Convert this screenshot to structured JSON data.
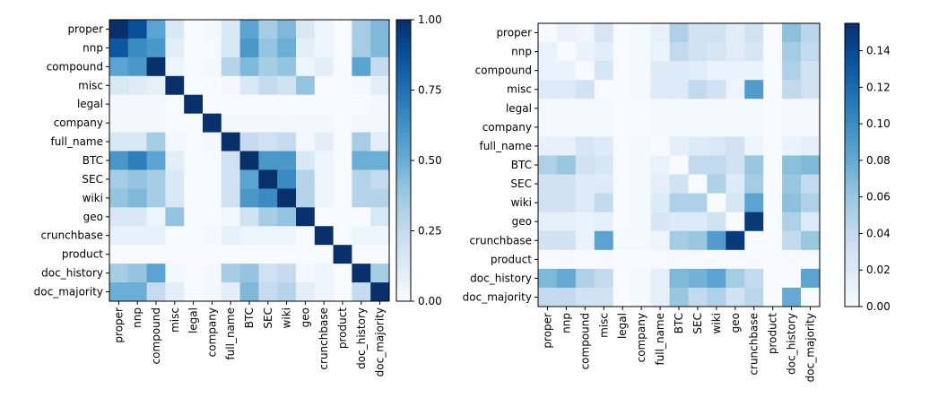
{
  "chart_data": [
    {
      "type": "heatmap",
      "title": "",
      "colormap": "Blues",
      "labels": [
        "proper",
        "nnp",
        "compound",
        "misc",
        "legal",
        "company",
        "full_name",
        "BTC",
        "SEC",
        "wiki",
        "geo",
        "crunchbase",
        "product",
        "doc_history",
        "doc_majority"
      ],
      "vmin": 0,
      "vmax": 1.0,
      "colorbar_ticks": [
        0,
        0.25,
        0.5,
        0.75,
        1.0
      ],
      "colorbar_tick_labels": [
        "0.00",
        "0.25",
        "0.50",
        "0.75",
        "1.00"
      ],
      "matrix": [
        [
          1.0,
          0.88,
          0.55,
          0.15,
          0.0,
          0.02,
          0.15,
          0.55,
          0.35,
          0.45,
          0.15,
          0.05,
          0.0,
          0.35,
          0.45
        ],
        [
          0.85,
          0.65,
          0.6,
          0.1,
          0.0,
          0.01,
          0.15,
          0.6,
          0.4,
          0.5,
          0.1,
          0.05,
          0.0,
          0.35,
          0.45
        ],
        [
          0.55,
          0.6,
          1.0,
          0.05,
          0.0,
          0.02,
          0.3,
          0.45,
          0.35,
          0.4,
          0.05,
          0.1,
          0.0,
          0.55,
          0.25
        ],
        [
          0.15,
          0.12,
          0.08,
          1.0,
          0.0,
          0.0,
          0.02,
          0.15,
          0.25,
          0.2,
          0.4,
          0.0,
          0.0,
          0.02,
          0.1
        ],
        [
          0.02,
          0.02,
          0.02,
          0.0,
          1.0,
          0.0,
          0.0,
          0.0,
          0.0,
          0.0,
          0.0,
          0.0,
          0.0,
          0.0,
          0.02
        ],
        [
          0.03,
          0.03,
          0.03,
          0.0,
          0.0,
          1.0,
          0.02,
          0.02,
          0.02,
          0.03,
          0.02,
          0.02,
          0.0,
          0.02,
          0.03
        ],
        [
          0.15,
          0.15,
          0.35,
          0.02,
          0.0,
          0.02,
          1.0,
          0.25,
          0.2,
          0.25,
          0.02,
          0.1,
          0.0,
          0.35,
          0.1
        ],
        [
          0.6,
          0.7,
          0.55,
          0.1,
          0.0,
          0.01,
          0.2,
          1.0,
          0.6,
          0.6,
          0.15,
          0.05,
          0.0,
          0.5,
          0.5
        ],
        [
          0.35,
          0.4,
          0.35,
          0.15,
          0.0,
          0.01,
          0.2,
          0.55,
          1.0,
          0.65,
          0.3,
          0.05,
          0.0,
          0.3,
          0.25
        ],
        [
          0.4,
          0.45,
          0.35,
          0.15,
          0.0,
          0.01,
          0.2,
          0.6,
          0.65,
          1.0,
          0.3,
          0.05,
          0.0,
          0.3,
          0.3
        ],
        [
          0.15,
          0.15,
          0.05,
          0.4,
          0.0,
          0.0,
          0.02,
          0.2,
          0.35,
          0.4,
          1.0,
          0.0,
          0.0,
          0.0,
          0.15
        ],
        [
          0.08,
          0.08,
          0.08,
          0.0,
          0.0,
          0.02,
          0.08,
          0.05,
          0.05,
          0.05,
          0.0,
          1.0,
          0.0,
          0.05,
          0.05
        ],
        [
          0.0,
          0.0,
          0.0,
          0.0,
          0.0,
          0.0,
          0.0,
          0.0,
          0.0,
          0.0,
          0.0,
          0.0,
          1.0,
          0.0,
          0.0
        ],
        [
          0.35,
          0.4,
          0.55,
          0.02,
          0.0,
          0.02,
          0.35,
          0.4,
          0.2,
          0.25,
          0.02,
          0.05,
          0.0,
          1.0,
          0.35
        ],
        [
          0.5,
          0.5,
          0.25,
          0.1,
          0.0,
          0.02,
          0.1,
          0.45,
          0.25,
          0.3,
          0.1,
          0.05,
          0.0,
          0.25,
          1.0
        ]
      ]
    },
    {
      "type": "heatmap",
      "title": "",
      "colormap": "Blues",
      "labels": [
        "proper",
        "nnp",
        "compound",
        "misc",
        "legal",
        "company",
        "full_name",
        "BTC",
        "SEC",
        "wiki",
        "geo",
        "crunchbase",
        "product",
        "doc_history",
        "doc_majority"
      ],
      "vmin": 0,
      "vmax": 0.155,
      "colorbar_ticks": [
        0,
        0.02,
        0.04,
        0.06,
        0.08,
        0.1,
        0.12,
        0.14
      ],
      "colorbar_tick_labels": [
        "0.00",
        "0.02",
        "0.04",
        "0.06",
        "0.08",
        "0.10",
        "0.12",
        "0.14"
      ],
      "matrix": [
        [
          0.0,
          0.01,
          0.006,
          0.025,
          0.0,
          0.002,
          0.012,
          0.05,
          0.03,
          0.03,
          0.018,
          0.03,
          0.0,
          0.065,
          0.045
        ],
        [
          0.01,
          0.0,
          0.01,
          0.018,
          0.0,
          0.002,
          0.01,
          0.04,
          0.03,
          0.025,
          0.018,
          0.025,
          0.0,
          0.055,
          0.04
        ],
        [
          0.01,
          0.01,
          0.0,
          0.025,
          0.0,
          0.002,
          0.02,
          0.02,
          0.018,
          0.01,
          0.01,
          0.01,
          0.0,
          0.05,
          0.03
        ],
        [
          0.02,
          0.02,
          0.03,
          0.0,
          0.0,
          0.002,
          0.02,
          0.02,
          0.04,
          0.03,
          0.008,
          0.09,
          0.0,
          0.04,
          0.03
        ],
        [
          0.002,
          0.002,
          0.002,
          0.002,
          0.0,
          0.0,
          0.002,
          0.002,
          0.002,
          0.002,
          0.002,
          0.002,
          0.0,
          0.002,
          0.002
        ],
        [
          0.003,
          0.003,
          0.003,
          0.003,
          0.0,
          0.0,
          0.003,
          0.003,
          0.003,
          0.003,
          0.003,
          0.003,
          0.0,
          0.003,
          0.003
        ],
        [
          0.012,
          0.012,
          0.025,
          0.02,
          0.0,
          0.002,
          0.0,
          0.015,
          0.02,
          0.022,
          0.03,
          0.008,
          0.0,
          0.01,
          0.015
        ],
        [
          0.05,
          0.06,
          0.03,
          0.025,
          0.0,
          0.002,
          0.01,
          0.0,
          0.04,
          0.04,
          0.03,
          0.06,
          0.0,
          0.065,
          0.07
        ],
        [
          0.03,
          0.03,
          0.02,
          0.02,
          0.0,
          0.002,
          0.015,
          0.03,
          0.0,
          0.05,
          0.02,
          0.055,
          0.0,
          0.06,
          0.04
        ],
        [
          0.03,
          0.03,
          0.02,
          0.04,
          0.0,
          0.002,
          0.02,
          0.05,
          0.05,
          0.0,
          0.025,
          0.085,
          0.0,
          0.065,
          0.05
        ],
        [
          0.015,
          0.015,
          0.01,
          0.015,
          0.0,
          0.002,
          0.025,
          0.02,
          0.02,
          0.03,
          0.0,
          0.15,
          0.0,
          0.05,
          0.02
        ],
        [
          0.03,
          0.03,
          0.01,
          0.085,
          0.002,
          0.002,
          0.008,
          0.055,
          0.06,
          0.09,
          0.15,
          0.0,
          0.0,
          0.04,
          0.06
        ],
        [
          0.001,
          0.001,
          0.001,
          0.001,
          0.0,
          0.0,
          0.001,
          0.001,
          0.001,
          0.001,
          0.001,
          0.001,
          0.0,
          0.001,
          0.001
        ],
        [
          0.07,
          0.08,
          0.05,
          0.04,
          0.0,
          0.002,
          0.015,
          0.07,
          0.075,
          0.085,
          0.055,
          0.04,
          0.0,
          0.0,
          0.085
        ],
        [
          0.04,
          0.04,
          0.03,
          0.03,
          0.0,
          0.002,
          0.015,
          0.06,
          0.04,
          0.05,
          0.03,
          0.045,
          0.0,
          0.08,
          0.0
        ]
      ]
    }
  ]
}
